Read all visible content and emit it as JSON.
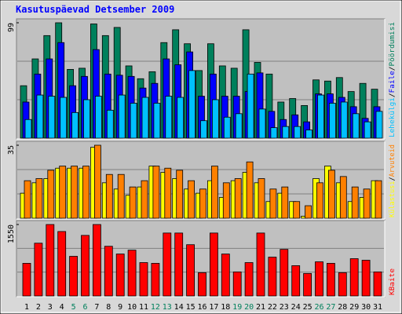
{
  "chart_data": {
    "type": "bar",
    "title": "Kasutuspäevad Detsember 2009",
    "separator": "/",
    "categories": [
      "1",
      "2",
      "3",
      "4",
      "5",
      "6",
      "7",
      "8",
      "9",
      "10",
      "11",
      "12",
      "13",
      "14",
      "15",
      "16",
      "17",
      "18",
      "19",
      "20",
      "21",
      "22",
      "23",
      "24",
      "25",
      "26",
      "27",
      "28",
      "29",
      "30",
      "31"
    ],
    "label_colors": [
      "#000000",
      "#000000",
      "#000000",
      "#000000",
      "#00805c",
      "#00805c",
      "#000000",
      "#000000",
      "#000000",
      "#000000",
      "#000000",
      "#00805c",
      "#00805c",
      "#000000",
      "#000000",
      "#000000",
      "#000000",
      "#000000",
      "#00805c",
      "#00805c",
      "#000000",
      "#000000",
      "#000000",
      "#000000",
      "#000000",
      "#00805c",
      "#00805c",
      "#000000",
      "#000000",
      "#000000",
      "#000000"
    ],
    "panels": [
      {
        "ylim": [
          0,
          99
        ],
        "yticks": [
          99
        ],
        "series": [
          {
            "name": "Pöördumisi",
            "color": "#00805c",
            "values": [
              45,
              68,
              88,
              99,
              59,
              60,
              98,
              88,
              95,
              62,
              51,
              57,
              82,
              93,
              81,
              58,
              81,
              62,
              60,
              93,
              65,
              55,
              31,
              34,
              28,
              50,
              49,
              52,
              40,
              47,
              42
            ]
          },
          {
            "name": "Faile",
            "color": "#0000ff",
            "values": [
              31,
              55,
              68,
              82,
              45,
              53,
              76,
              55,
              54,
              53,
              43,
              47,
              68,
              63,
              74,
              36,
              55,
              36,
              36,
              40,
              56,
              23,
              16,
              20,
              14,
              38,
              38,
              35,
              27,
              17,
              27
            ]
          },
          {
            "name": "Lehekülgi",
            "color": "#00c0ff",
            "values": [
              16,
              37,
              36,
              35,
              22,
              33,
              36,
              24,
              37,
              30,
              35,
              30,
              36,
              35,
              58,
              15,
              33,
              18,
              21,
              55,
              25,
              9,
              10,
              10,
              7,
              37,
              30,
              31,
              21,
              14,
              23
            ]
          }
        ]
      },
      {
        "ylim": [
          0,
          35
        ],
        "yticks": [
          35
        ],
        "series": [
          {
            "name": "Külastusi",
            "color": "#ffff00",
            "values": [
              12,
              17,
              19,
              24,
              24,
              24,
              34,
              17,
              14,
              11,
              15,
              25,
              22,
              19,
              14,
              12,
              18,
              10,
              18,
              22,
              17,
              8,
              12,
              8,
              1,
              19,
              25,
              17,
              8,
              10,
              18
            ]
          },
          {
            "name": "Arvuteid",
            "color": "#ff8000",
            "values": [
              18,
              19,
              23,
              25,
              25,
              25,
              35,
              21,
              21,
              15,
              18,
              25,
              24,
              23,
              18,
              14,
              25,
              17,
              19,
              27,
              19,
              14,
              15,
              8,
              6,
              17,
              23,
              20,
              15,
              14,
              18
            ]
          }
        ]
      },
      {
        "ylim": [
          0,
          1550
        ],
        "yticks": [
          1550
        ],
        "series": [
          {
            "name": "KBaite",
            "color": "#ff0000",
            "values": [
              708,
              1145,
              1550,
              1398,
              860,
              1314,
              1550,
              1078,
              910,
              994,
              724,
              708,
              1365,
              1365,
              1112,
              505,
              1365,
              910,
              522,
              724,
              1365,
              842,
              1011,
              657,
              488,
              741,
              708,
              505,
              809,
              775,
              522
            ]
          }
        ]
      }
    ]
  }
}
